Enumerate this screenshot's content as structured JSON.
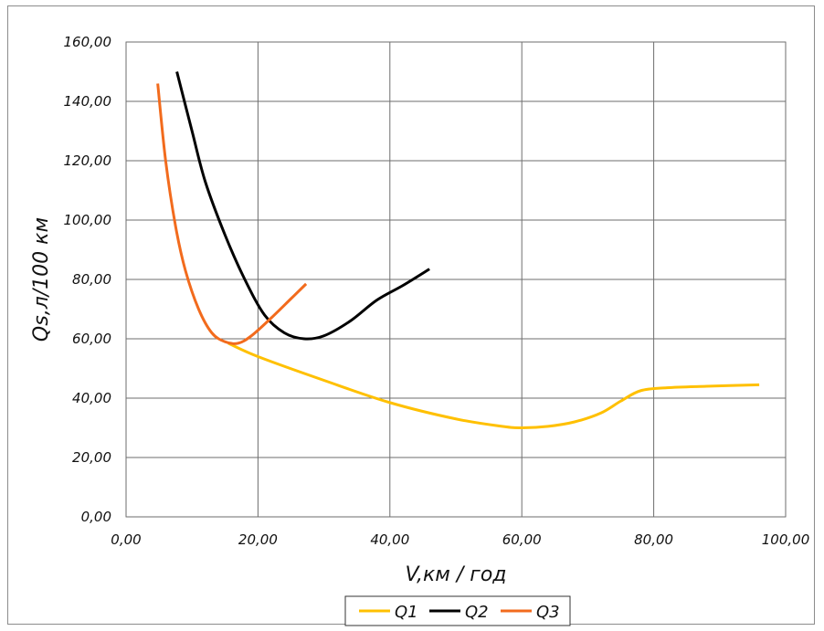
{
  "chart_data": {
    "type": "line",
    "title": "",
    "xlabel": "V,км / год",
    "ylabel": "Qs,л/100 км",
    "xlim": [
      0,
      100
    ],
    "ylim": [
      0,
      160
    ],
    "x_ticks": [
      0,
      20,
      40,
      60,
      80,
      100
    ],
    "y_ticks": [
      0,
      20,
      40,
      60,
      80,
      100,
      120,
      140,
      160
    ],
    "x_tick_labels": [
      "0,00",
      "20,00",
      "40,00",
      "60,00",
      "80,00",
      "100,00"
    ],
    "y_tick_labels": [
      "0,00",
      "20,00",
      "40,00",
      "60,00",
      "80,00",
      "100,00",
      "120,00",
      "140,00",
      "160,00"
    ],
    "grid": true,
    "legend_position": "bottom",
    "series": [
      {
        "name": "Q1",
        "color": "#FFC000",
        "x": [
          15.5,
          20,
          30,
          40,
          50,
          57,
          60,
          64,
          68,
          72,
          75,
          78,
          82,
          88,
          96
        ],
        "y": [
          58.5,
          54,
          46,
          38.5,
          33,
          30.5,
          30,
          30.5,
          32,
          35,
          39,
          42.5,
          43.5,
          44,
          44.5
        ]
      },
      {
        "name": "Q2",
        "color": "#000000",
        "x": [
          7.7,
          10,
          12,
          15,
          18,
          21,
          24,
          27,
          30,
          34,
          38,
          42,
          46
        ],
        "y": [
          150,
          130,
          113,
          95,
          80,
          68,
          62,
          60,
          61,
          66,
          73,
          78,
          83.5
        ]
      },
      {
        "name": "Q3",
        "color": "#F26B1D",
        "x": [
          4.8,
          6,
          7.5,
          9,
          11,
          13,
          15,
          17,
          19,
          22,
          25,
          27.3
        ],
        "y": [
          146,
          120,
          98,
          83,
          70,
          62,
          59,
          58.5,
          61,
          67,
          73.5,
          78.5
        ]
      }
    ]
  }
}
